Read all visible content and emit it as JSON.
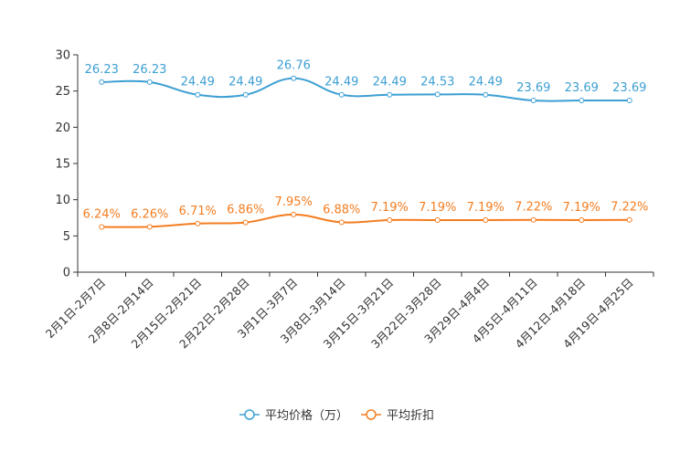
{
  "chart_data": {
    "type": "line",
    "categories": [
      "2月1日-2月7日",
      "2月8日-2月14日",
      "2月15日-2月21日",
      "2月22日-2月28日",
      "3月1日-3月7日",
      "3月8日-3月14日",
      "3月15日-3月21日",
      "3月22日-3月28日",
      "3月29日-4月4日",
      "4月5日-4月11日",
      "4月12日-4月18日",
      "4月19日-4月25日"
    ],
    "ylim": [
      0,
      30
    ],
    "yticks": [
      "0",
      "5",
      "10",
      "15",
      "20",
      "25",
      "30"
    ],
    "series": [
      {
        "name": "平均价格（万）",
        "color": "#3d9fd3",
        "values": [
          26.23,
          26.23,
          24.49,
          24.49,
          26.76,
          24.49,
          24.49,
          24.53,
          24.49,
          23.69,
          23.69,
          23.69
        ],
        "labels": [
          "26.23",
          "26.23",
          "24.49",
          "24.49",
          "26.76",
          "24.49",
          "24.49",
          "24.53",
          "24.49",
          "23.69",
          "23.69",
          "23.69"
        ]
      },
      {
        "name": "平均折扣",
        "color": "#f47d20",
        "values": [
          6.24,
          6.26,
          6.71,
          6.86,
          7.95,
          6.88,
          7.19,
          7.19,
          7.19,
          7.22,
          7.19,
          7.22
        ],
        "labels": [
          "6.24%",
          "6.26%",
          "6.71%",
          "6.86%",
          "7.95%",
          "6.88%",
          "7.19%",
          "7.19%",
          "7.19%",
          "7.22%",
          "7.19%",
          "7.22%"
        ]
      }
    ]
  }
}
